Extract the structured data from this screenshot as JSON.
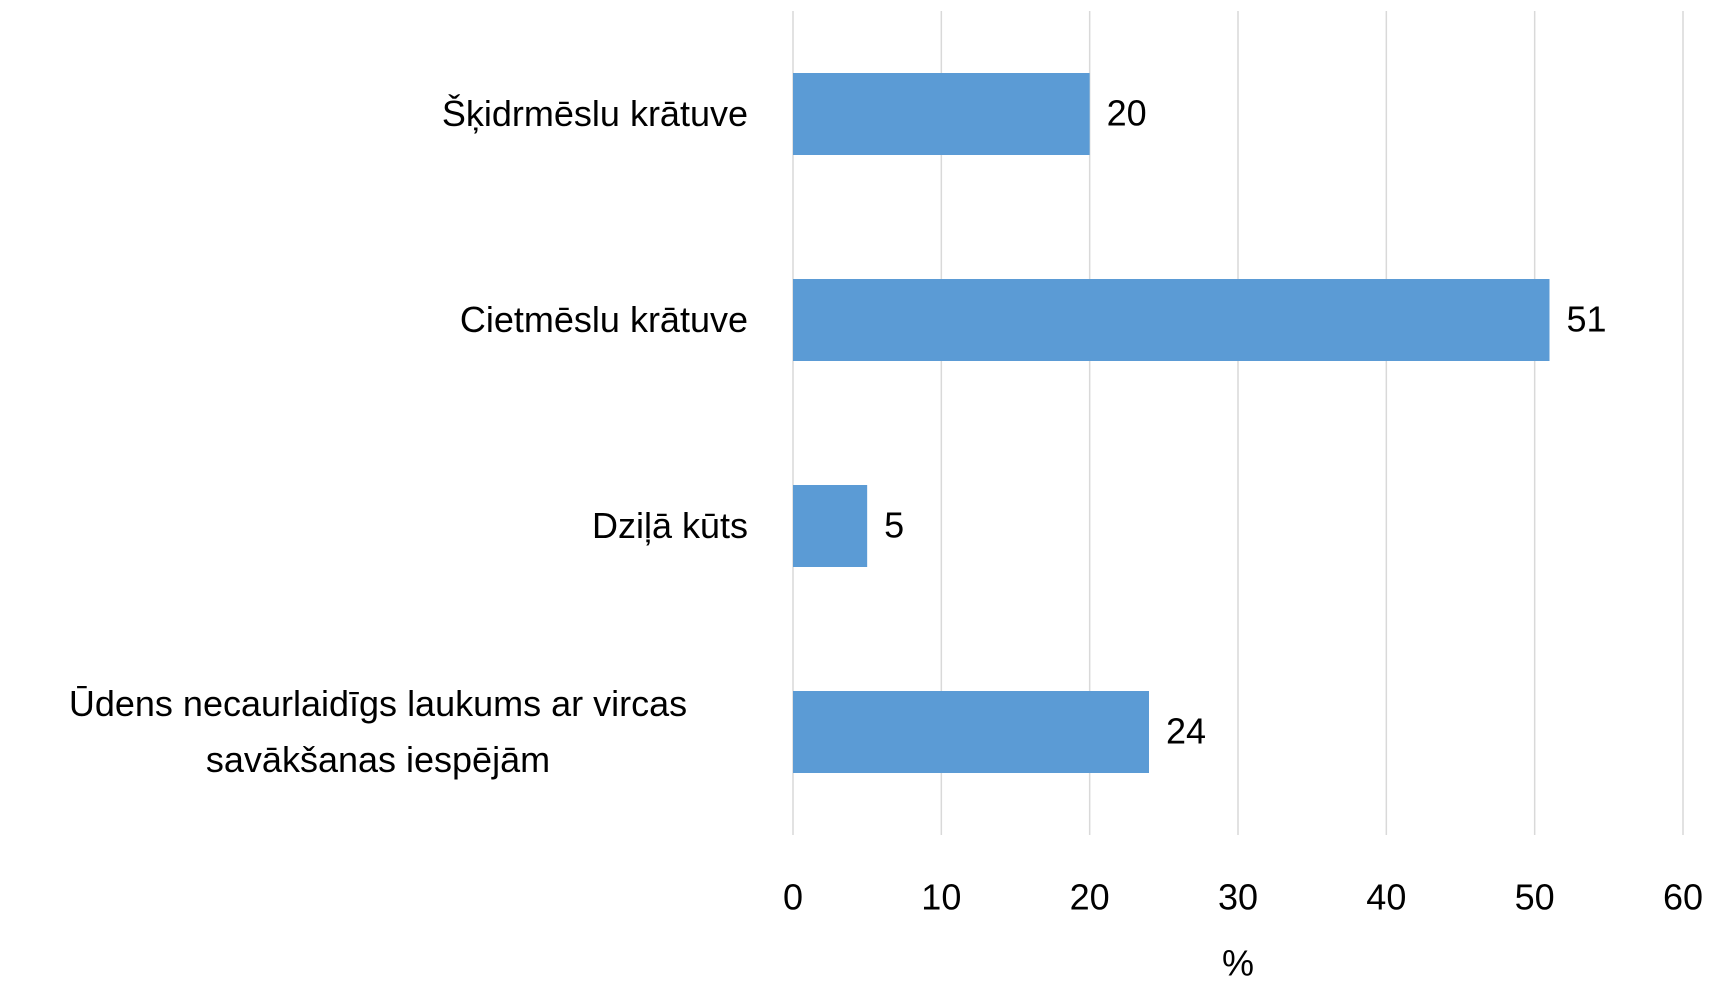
{
  "chart_data": {
    "type": "hbar",
    "categories": [
      "Šķidrmēslu krātuve",
      "Cietmēslu krātuve",
      "Dziļā kūts",
      "Ūdens necaurlaidīgs laukums ar vircas savākšanas iespējām"
    ],
    "values": [
      20,
      51,
      5,
      24
    ],
    "color": "#5b9bd5",
    "xlabel": "%",
    "xlim": [
      0,
      60
    ],
    "xticks": [
      0,
      10,
      20,
      30,
      40,
      50,
      60
    ],
    "grid": true
  }
}
